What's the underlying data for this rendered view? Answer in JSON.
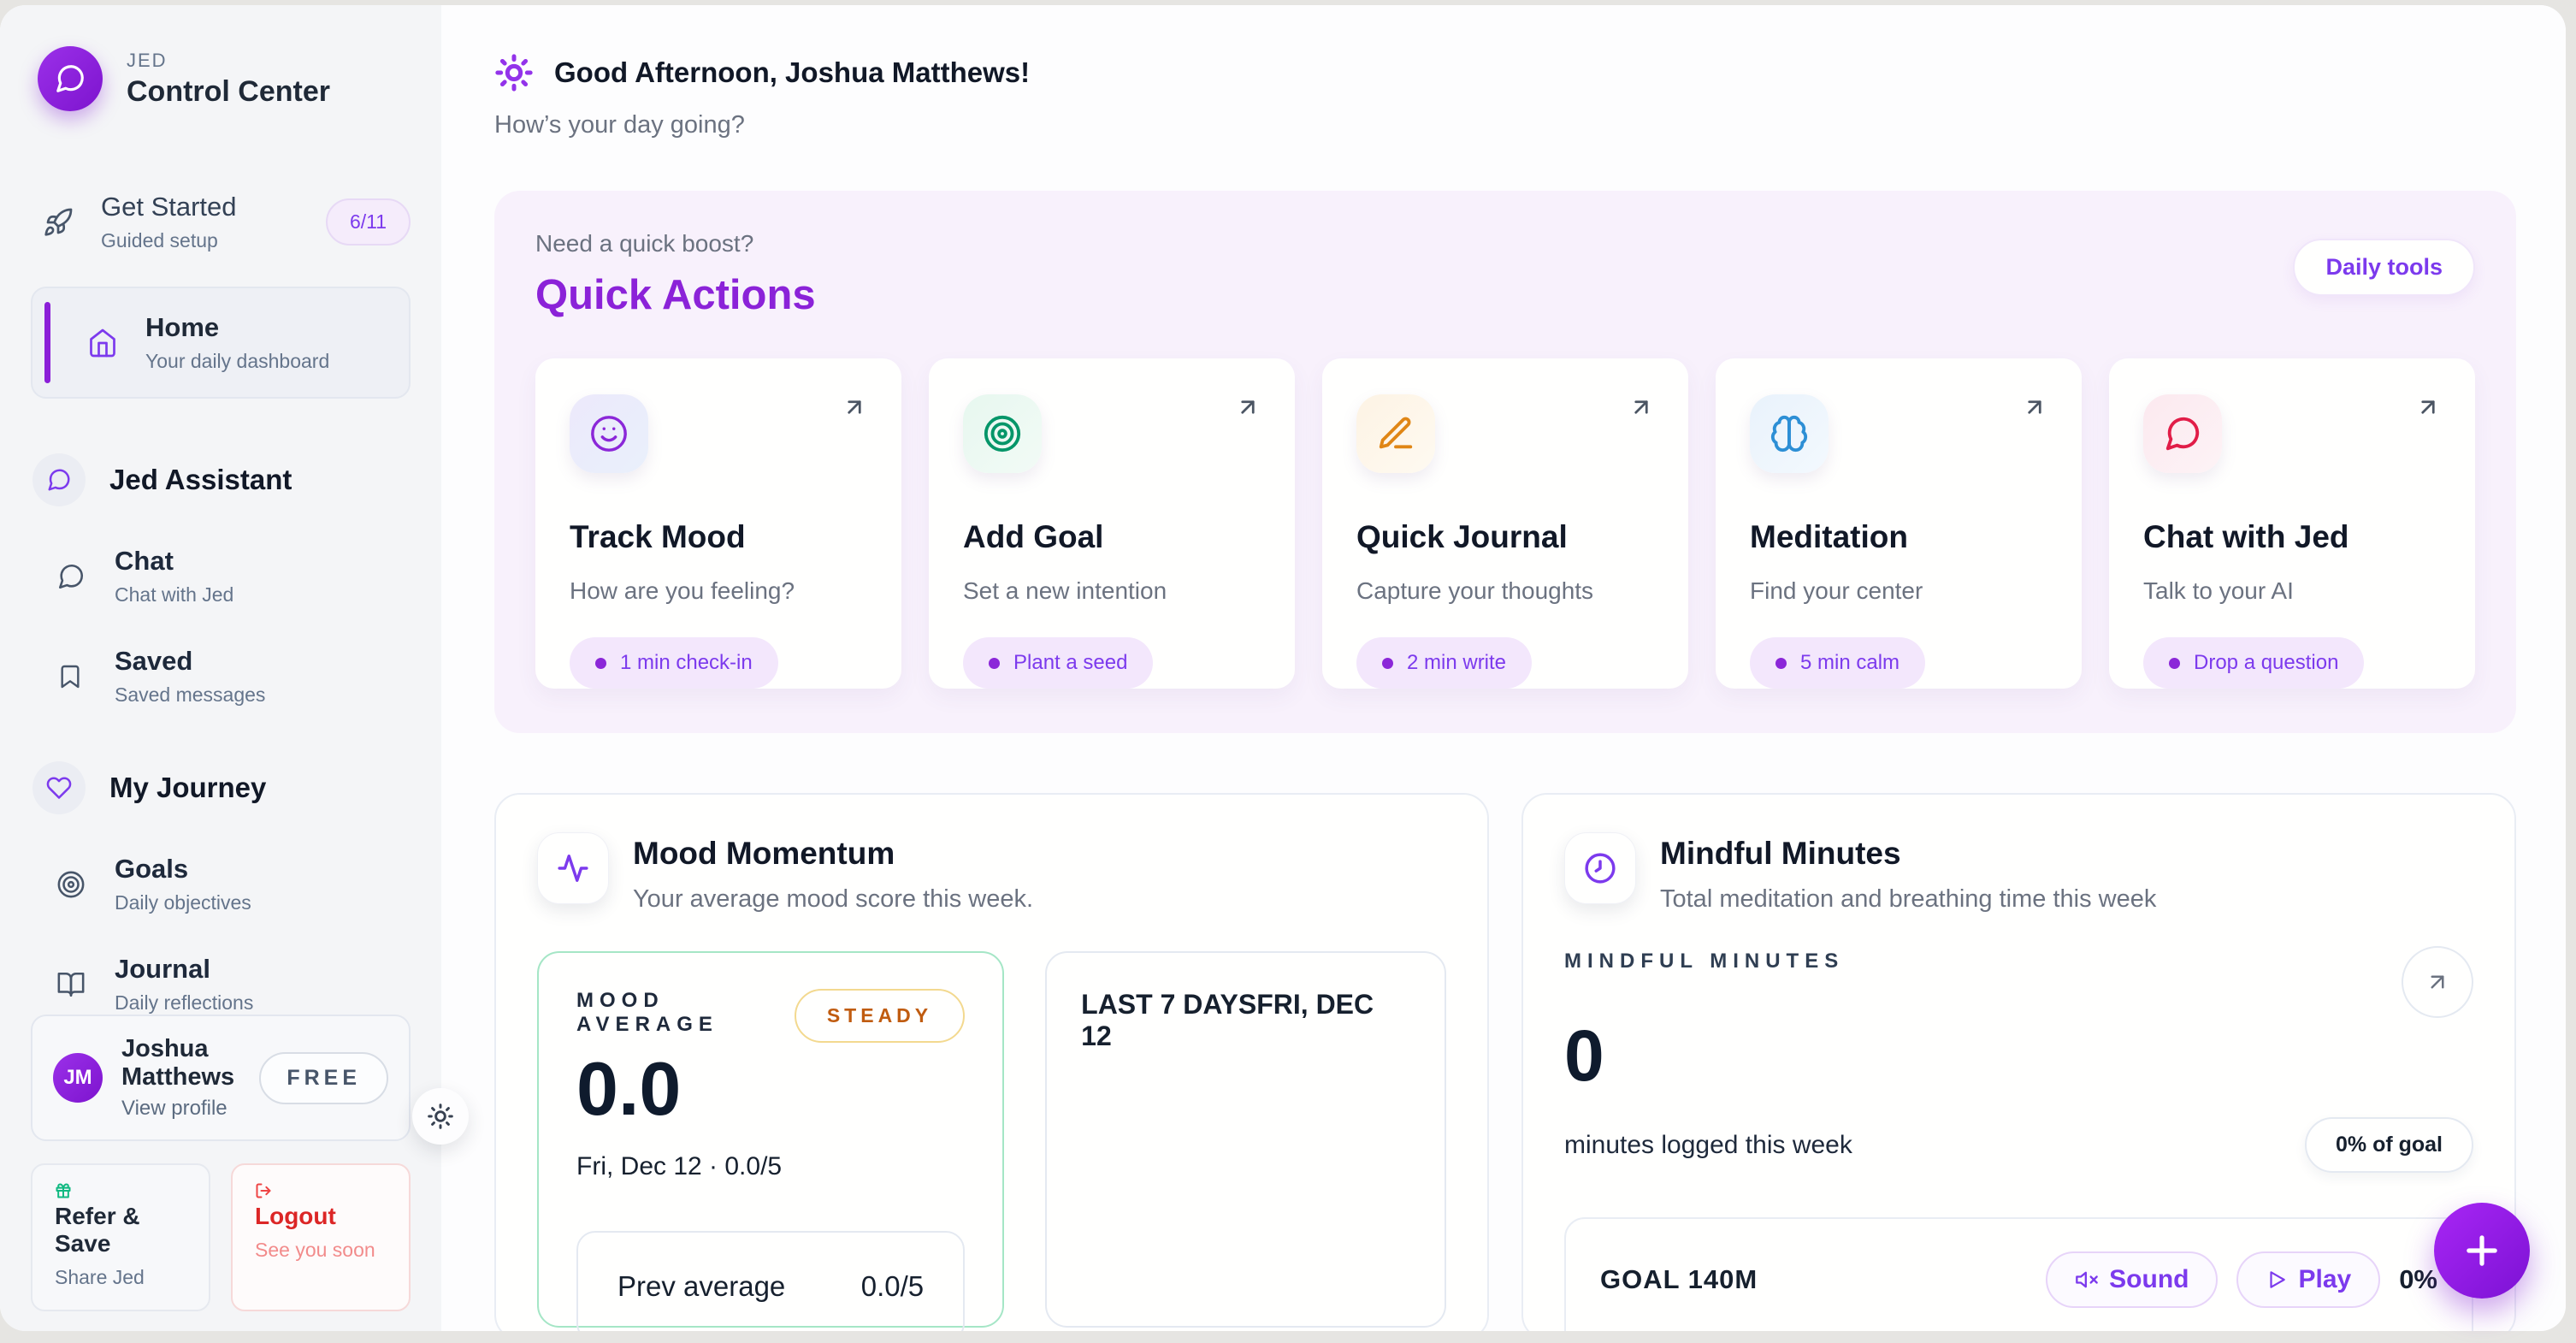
{
  "app": {
    "brand": "JED",
    "title": "Control Center"
  },
  "sidebar": {
    "get_started": {
      "label": "Get Started",
      "sub": "Guided setup",
      "badge": "6/11"
    },
    "home": {
      "label": "Home",
      "sub": "Your daily dashboard"
    },
    "assistant_section": {
      "label": "Jed Assistant"
    },
    "chat": {
      "label": "Chat",
      "sub": "Chat with Jed"
    },
    "saved": {
      "label": "Saved",
      "sub": "Saved messages"
    },
    "journey_section": {
      "label": "My Journey"
    },
    "goals": {
      "label": "Goals",
      "sub": "Daily objectives"
    },
    "journal": {
      "label": "Journal",
      "sub": "Daily reflections"
    },
    "profile": {
      "initials": "JM",
      "name": "Joshua Matthews",
      "sub": "View profile",
      "badge": "FREE"
    },
    "refer": {
      "label": "Refer & Save",
      "sub": "Share Jed"
    },
    "logout": {
      "label": "Logout",
      "sub": "See you soon"
    }
  },
  "header": {
    "greeting": "Good Afternoon, Joshua Matthews!",
    "sub": "How’s your day going?"
  },
  "quick_actions": {
    "kicker": "Need a quick boost?",
    "title": "Quick Actions",
    "tools_button": "Daily tools",
    "cards": [
      {
        "title": "Track Mood",
        "sub": "How are you feeling?",
        "tag": "1 min check-in",
        "icon": "smiley",
        "color": "#8b27d8",
        "bg": "linear-gradient(135deg,#ece9fb,#e9f0fb)"
      },
      {
        "title": "Add Goal",
        "sub": "Set a new intention",
        "tag": "Plant a seed",
        "icon": "target",
        "color": "#059669",
        "bg": "linear-gradient(135deg,#e7f7ef,#f2fbf6)"
      },
      {
        "title": "Quick Journal",
        "sub": "Capture your thoughts",
        "tag": "2 min write",
        "icon": "pen",
        "color": "#e08615",
        "bg": "linear-gradient(135deg,#fdf3e4,#fefaf1)"
      },
      {
        "title": "Meditation",
        "sub": "Find your center",
        "tag": "5 min calm",
        "icon": "brain",
        "color": "#2d8fd5",
        "bg": "linear-gradient(135deg,#e9f2fb,#f3f9fe)"
      },
      {
        "title": "Chat with Jed",
        "sub": "Talk to your AI",
        "tag": "Drop a question",
        "icon": "chat",
        "color": "#e11d48",
        "bg": "linear-gradient(135deg,#fce9ef,#fdf3f6)"
      }
    ]
  },
  "mood": {
    "title": "Mood Momentum",
    "sub": "Your average mood score this week.",
    "stat_label": "MOOD AVERAGE",
    "status": "STEADY",
    "value": "0.0",
    "date_line": "Fri, Dec 12 · 0.0/5",
    "prev_label": "Prev average",
    "prev_value": "0.0/5",
    "last7_label": "LAST 7 DAYS",
    "last7_date": "FRI, DEC 12"
  },
  "mindful": {
    "title": "Mindful Minutes",
    "sub": "Total meditation and breathing time this week",
    "stat_label": "MINDFUL MINUTES",
    "value": "0",
    "value_sub": "minutes logged this week",
    "goal_badge": "0% of goal",
    "goal_label": "GOAL 140M",
    "sound_button": "Sound",
    "play_button": "Play",
    "progress_text": "0%",
    "progress_pct": 0
  },
  "colors": {
    "accent": "#8b27d8",
    "accent_text": "#7c3aed",
    "steady_text": "#c05c10",
    "navy": "#16202e",
    "logout_red": "#dc2626"
  }
}
